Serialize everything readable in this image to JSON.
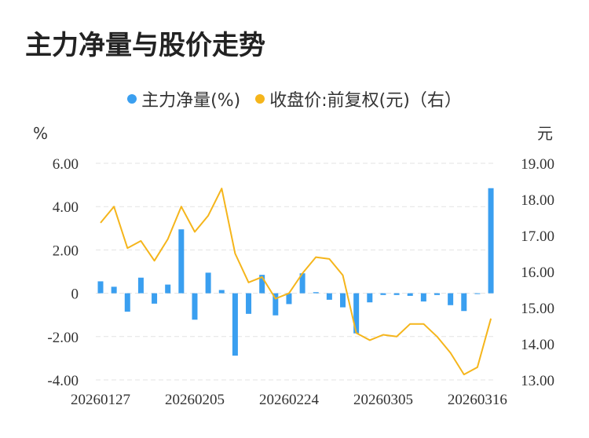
{
  "title": "主力净量与股价走势",
  "legend": {
    "series1": "主力净量(%)",
    "series2": "收盘价:前复权(元)（右）"
  },
  "colors": {
    "bar": "#3a9ff0",
    "line": "#f5b51b",
    "grid": "#e3e3e3"
  },
  "chart_data": {
    "type": "bar+line",
    "title": "主力净量与股价走势",
    "y_left_unit": "%",
    "y_right_unit": "元",
    "y_left_ticks": [
      "6.00",
      "4.00",
      "2.00",
      "0",
      "-2.00",
      "-4.00"
    ],
    "y_right_ticks": [
      "19.00",
      "18.00",
      "17.00",
      "16.00",
      "15.00",
      "14.00",
      "13.00"
    ],
    "y_left_range": [
      -4,
      6
    ],
    "y_right_range": [
      13,
      19
    ],
    "x_tick_labels": [
      "20260127",
      "20260205",
      "20260224",
      "20260305",
      "20260316"
    ],
    "x_tick_indices": [
      0,
      7,
      14,
      21,
      28
    ],
    "grid": true,
    "legend_position": "top",
    "series": [
      {
        "name": "主力净量(%)",
        "type": "bar",
        "axis": "left",
        "values": [
          0.55,
          0.3,
          -0.85,
          0.72,
          -0.48,
          0.4,
          2.95,
          -1.22,
          0.95,
          0.15,
          -2.88,
          -0.95,
          0.85,
          -1.02,
          -0.5,
          0.92,
          0.05,
          -0.3,
          -0.65,
          -1.85,
          -0.42,
          -0.08,
          -0.08,
          -0.12,
          -0.38,
          -0.08,
          -0.55,
          -0.82,
          -0.02,
          4.85
        ]
      },
      {
        "name": "收盘价:前复权(元)（右）",
        "type": "line",
        "axis": "right",
        "values": [
          17.35,
          17.8,
          16.65,
          16.85,
          16.3,
          16.9,
          17.8,
          17.1,
          17.55,
          18.3,
          16.5,
          15.7,
          15.85,
          15.25,
          15.4,
          15.95,
          16.4,
          16.35,
          15.9,
          14.3,
          14.1,
          14.25,
          14.2,
          14.55,
          14.55,
          14.2,
          13.75,
          13.15,
          13.35,
          14.7
        ]
      }
    ]
  }
}
